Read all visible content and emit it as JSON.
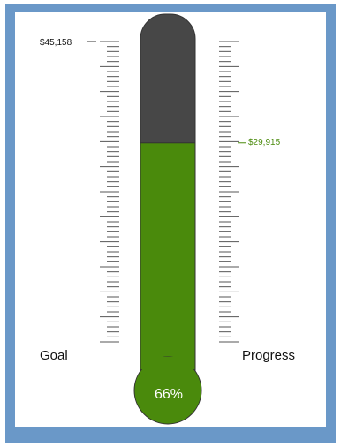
{
  "chart_data": {
    "type": "thermometer",
    "goal": 45158,
    "progress": 29915,
    "goal_value_label": "$45,158",
    "progress_value_label": "$29,915",
    "goal_label": "Goal",
    "progress_label": "Progress",
    "percent_label": "66%",
    "progress_fraction": 0.66
  },
  "colors": {
    "frame": "#6a98c8",
    "tube_empty": "#474747",
    "fill": "#4a8a0c",
    "outline": "#333333",
    "progress_text": "#4a8a0c"
  }
}
